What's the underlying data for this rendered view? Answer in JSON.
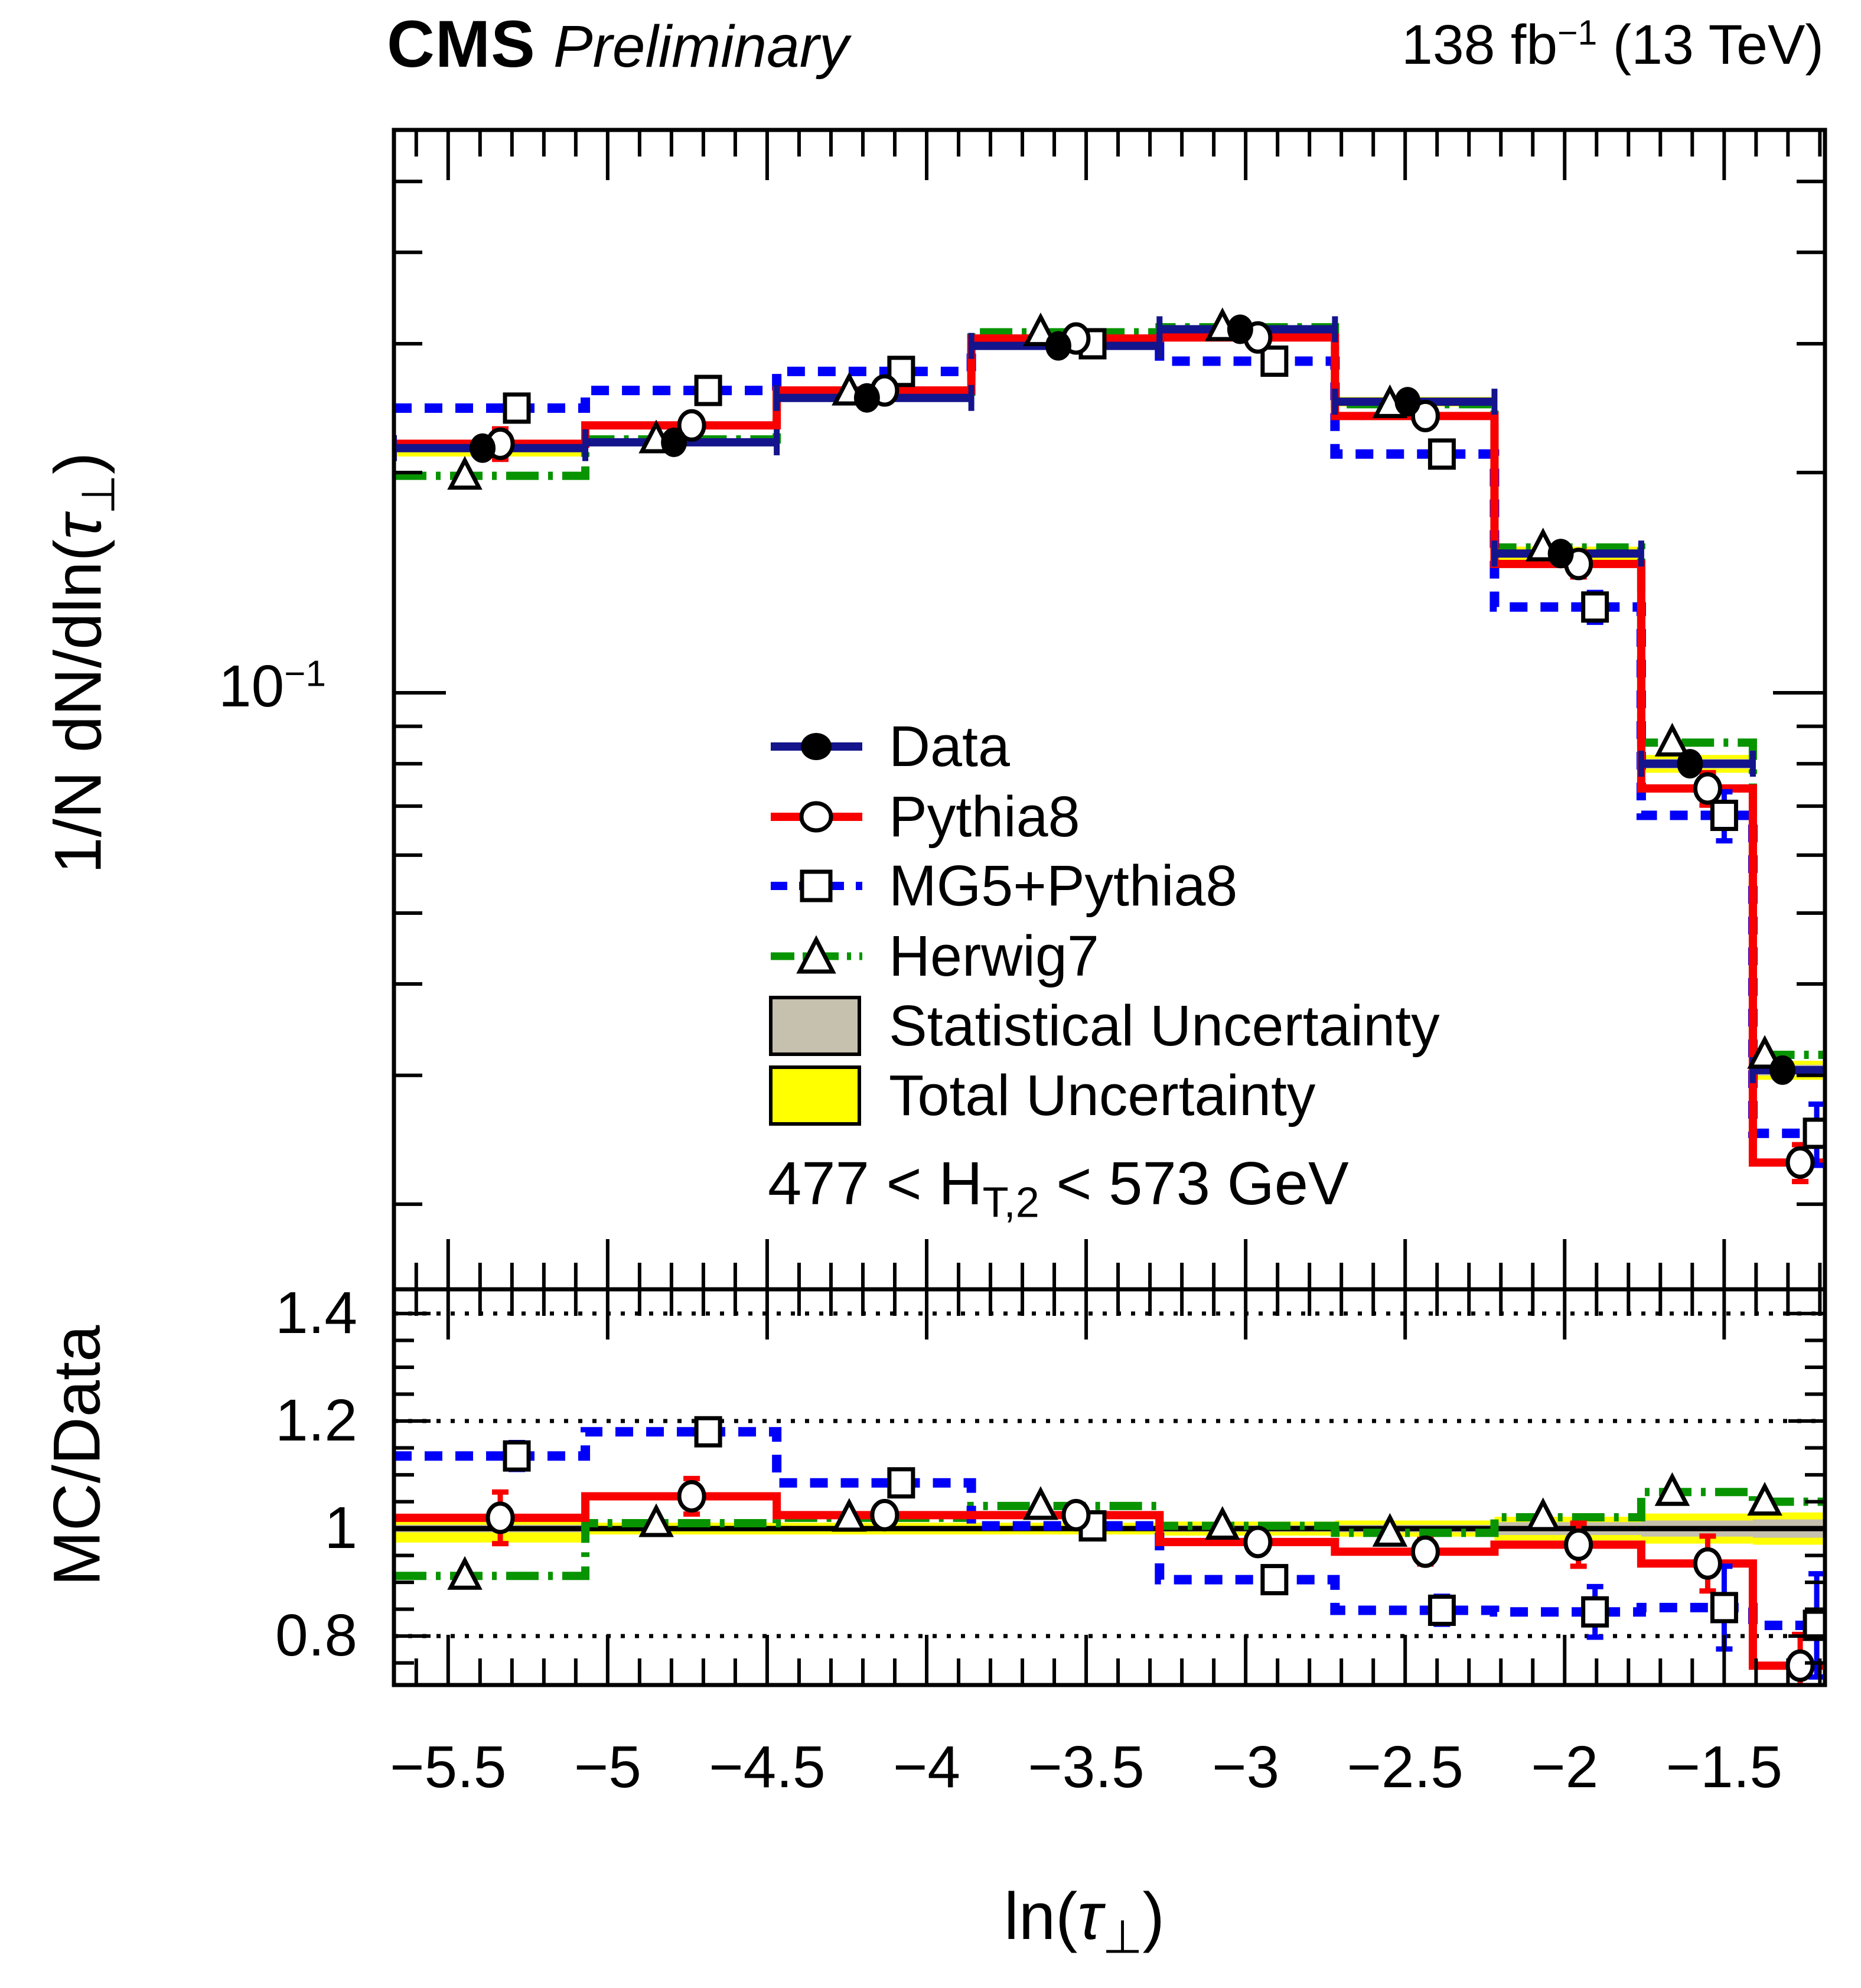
{
  "header": {
    "experiment": "CMS",
    "status": "Preliminary",
    "lumi_prefix": "138 fb",
    "lumi_sup": "−1",
    "lumi_suffix": " (13 TeV)"
  },
  "axes": {
    "main_y_label": {
      "prefix": "1/N dN/dln(",
      "tau": "τ",
      "sub": "⊥",
      "suffix": ")"
    },
    "ratio_y_label": "MC/Data",
    "x_label": {
      "prefix": "ln(",
      "tau": "τ",
      "sub": "⊥",
      "suffix": ")"
    },
    "y_major_label": {
      "base": "10",
      "exp": "−1"
    },
    "ratio_tick_labels": [
      "1.4",
      "1.2",
      "1",
      "0.8"
    ],
    "x_tick_labels": [
      "−5.5",
      "−5",
      "−4.5",
      "−4",
      "−3.5",
      "−3",
      "−2.5",
      "−2",
      "−1.5"
    ]
  },
  "legend": {
    "items": [
      {
        "label": "Data",
        "swatch": "series",
        "series": 0
      },
      {
        "label": "Pythia8",
        "swatch": "series",
        "series": 1
      },
      {
        "label": "MG5+Pythia8",
        "swatch": "series",
        "series": 2
      },
      {
        "label": "Herwig7",
        "swatch": "series",
        "series": 3
      },
      {
        "label": "Statistical Uncertainty",
        "swatch": "stat"
      },
      {
        "label": "Total Uncertainty",
        "swatch": "total"
      }
    ]
  },
  "selection_label": {
    "prefix": "477 < H",
    "sub": "T,2",
    "suffix": " < 573 GeV"
  },
  "chart_data": {
    "type": "histogram_with_ratio",
    "title": "CMS Preliminary, 138 fb-1 (13 TeV)",
    "xlabel": "ln(tau_perp)",
    "ylabel_main": "1/N dN/dln(tau_perp)",
    "ylabel_ratio": "MC/Data",
    "x_range": [
      -5.67,
      -1.184
    ],
    "y_range_main": [
      0.0153,
      0.588
    ],
    "y_range_ratio": [
      0.709,
      1.445
    ],
    "y_scale_main": "log",
    "x_edges": [
      -5.67,
      -5.07,
      -4.47,
      -3.86,
      -3.27,
      -2.72,
      -2.22,
      -1.76,
      -1.41,
      -1.18
    ],
    "x_major_ticks": [
      -5.5,
      -5,
      -4.5,
      -4,
      -3.5,
      -3,
      -2.5,
      -2,
      -1.5
    ],
    "x_minor_tick_step": 0.1,
    "y_main_major_ticks": [
      0.1
    ],
    "y_main_minor_ticks": [
      0.02,
      0.03,
      0.04,
      0.05,
      0.06,
      0.07,
      0.08,
      0.09,
      0.2,
      0.3,
      0.4,
      0.5
    ],
    "ratio_major_ticks": [
      1.4,
      1.2,
      1,
      0.8
    ],
    "ratio_minor_tick_step": 0.05,
    "ratio_gridlines_dotted": [
      0.8,
      1.2,
      1.4
    ],
    "ratio_gridlines_solid": [
      1.0
    ],
    "series": [
      {
        "name": "Data",
        "color": "#14148c",
        "marker": "filled-circle",
        "line": "solid",
        "values": [
          0.216,
          0.22,
          0.253,
          0.298,
          0.314,
          0.25,
          0.155,
          0.08,
          0.0305
        ]
      },
      {
        "name": "Pythia8",
        "color": "#f80000",
        "marker": "open-circle",
        "line": "solid",
        "values": [
          0.219,
          0.232,
          0.259,
          0.305,
          0.306,
          0.239,
          0.15,
          0.074,
          0.0228
        ],
        "ratio": [
          1.02,
          1.06,
          1.025,
          1.025,
          0.975,
          0.957,
          0.97,
          0.935,
          0.745
        ],
        "ratio_err": [
          0.048,
          0.033,
          0.015,
          0.012,
          0.016,
          0.023,
          0.04,
          0.051,
          0.058
        ]
      },
      {
        "name": "MG5+Pythia8",
        "color": "#0000f8",
        "marker": "open-square",
        "line": "dashed",
        "values": [
          0.245,
          0.259,
          0.275,
          0.3,
          0.284,
          0.212,
          0.131,
          0.068,
          0.025
        ],
        "ratio": [
          1.135,
          1.18,
          1.085,
          1.005,
          0.905,
          0.848,
          0.845,
          0.853,
          0.82
        ],
        "ratio_err": [
          0.025,
          0.018,
          0.014,
          0.01,
          0.014,
          0.026,
          0.047,
          0.077,
          0.096
        ]
      },
      {
        "name": "Herwig7",
        "color": "#089400",
        "marker": "open-triangle",
        "line": "dashdot",
        "values": [
          0.198,
          0.222,
          0.258,
          0.311,
          0.316,
          0.248,
          0.158,
          0.0855,
          0.032
        ],
        "ratio": [
          0.912,
          1.01,
          1.02,
          1.042,
          1.005,
          0.992,
          1.021,
          1.068,
          1.05
        ]
      }
    ],
    "uncertainty": {
      "stat_color": "#c6c0ae",
      "total_color": "#ffff00",
      "stat": [
        0.007,
        0.005,
        0.005,
        0.005,
        0.006,
        0.007,
        0.012,
        0.015,
        0.017
      ],
      "total": [
        0.026,
        0.011,
        0.011,
        0.011,
        0.013,
        0.015,
        0.022,
        0.028,
        0.03
      ]
    }
  }
}
